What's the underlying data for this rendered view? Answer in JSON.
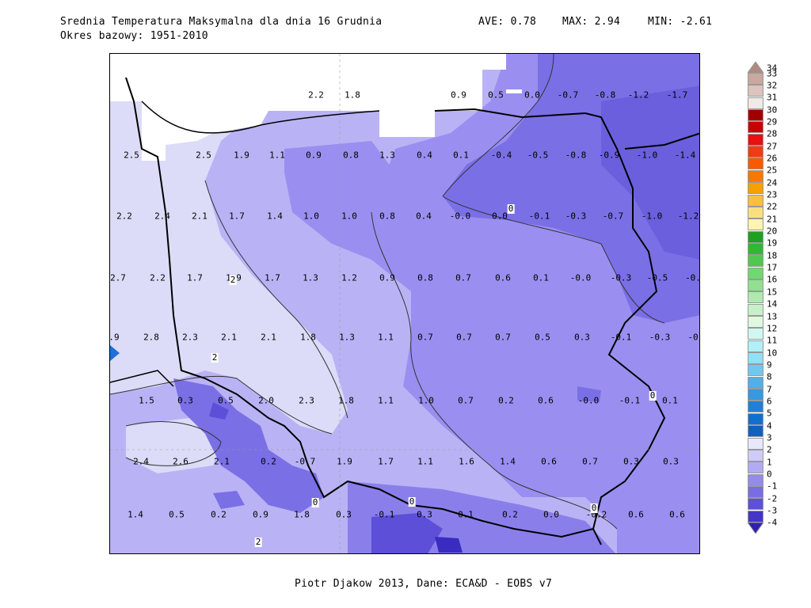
{
  "header": {
    "title": "Srednia Temperatura Maksymalna dla dnia 16 Grudnia",
    "subtitle": "Okres bazowy: 1951-2010",
    "ave": "AVE: 0.78",
    "max": "MAX: 2.94",
    "min": "MIN: -2.61"
  },
  "footer": {
    "credit": "Piotr Djakow 2013, Dane: ECA&D - EOBS v7"
  },
  "colors": {
    "land_bg": "#9a8ff0",
    "band_2_3": "#dcdcf8",
    "band_1_2": "#b9b3f5",
    "band_0_1": "#9a8ff0",
    "band_m1_0": "#7b6fe6",
    "band_m2_m1": "#5d4fd8",
    "sea": "#ffffff"
  },
  "legend": {
    "items": [
      {
        "label": "34",
        "color": "#b08a80"
      },
      {
        "label": "33",
        "color": "#c9a89f"
      },
      {
        "label": "32",
        "color": "#dcc3bc"
      },
      {
        "label": "31",
        "color": "#f2e8e4"
      },
      {
        "label": "30",
        "color": "#a00000"
      },
      {
        "label": "29",
        "color": "#c80000"
      },
      {
        "label": "28",
        "color": "#e81010"
      },
      {
        "label": "27",
        "color": "#f03c10"
      },
      {
        "label": "26",
        "color": "#f85a00"
      },
      {
        "label": "25",
        "color": "#f87800"
      },
      {
        "label": "24",
        "color": "#f8a000"
      },
      {
        "label": "23",
        "color": "#f8c040"
      },
      {
        "label": "22",
        "color": "#f8e080"
      },
      {
        "label": "21",
        "color": "#fff5b0"
      },
      {
        "label": "20",
        "color": "#20a020"
      },
      {
        "label": "19",
        "color": "#30b830"
      },
      {
        "label": "18",
        "color": "#50c850"
      },
      {
        "label": "17",
        "color": "#70d870"
      },
      {
        "label": "16",
        "color": "#90e090"
      },
      {
        "label": "15",
        "color": "#b0e8b0"
      },
      {
        "label": "14",
        "color": "#c8f0c8"
      },
      {
        "label": "13",
        "color": "#e0f8e0"
      },
      {
        "label": "12",
        "color": "#d0f8f0"
      },
      {
        "label": "11",
        "color": "#b0f0f8"
      },
      {
        "label": "10",
        "color": "#90e0f8"
      },
      {
        "label": "9",
        "color": "#70c8f0"
      },
      {
        "label": "8",
        "color": "#50b0e8"
      },
      {
        "label": "7",
        "color": "#3898e0"
      },
      {
        "label": "6",
        "color": "#2080d8"
      },
      {
        "label": "5",
        "color": "#1070d0"
      },
      {
        "label": "4",
        "color": "#1060c0"
      },
      {
        "label": "3",
        "color": "#e8e8fc"
      },
      {
        "label": "2",
        "color": "#cfcbf8"
      },
      {
        "label": "1",
        "color": "#b2abf3"
      },
      {
        "label": "0",
        "color": "#958aee"
      },
      {
        "label": "-1",
        "color": "#7a6de4"
      },
      {
        "label": "-2",
        "color": "#5e50d8"
      },
      {
        "label": "-3",
        "color": "#4434c8"
      },
      {
        "label": "-4",
        "color": "#3020b0"
      }
    ]
  },
  "grid_values": [
    [
      "2.2",
      "1.8",
      "0.9",
      "0.5",
      "0.0",
      "-0.7",
      "-0.8",
      "-1.2",
      "-1.7"
    ],
    [
      "2.5",
      "2.5",
      "1.9",
      "1.1",
      "0.9",
      "0.8",
      "1.3",
      "0.4",
      "0.1",
      "-0.4",
      "-0.5",
      "-0.8",
      "-0.9",
      "-1.0",
      "-1.4"
    ],
    [
      "2.2",
      "2.4",
      "2.1",
      "1.7",
      "1.4",
      "1.0",
      "1.0",
      "0.8",
      "0.4",
      "-0.0",
      "0.0",
      "-0.1",
      "-0.3",
      "-0.7",
      "-1.0",
      "-1.2"
    ],
    [
      "2.7",
      "2.2",
      "1.7",
      "1.9",
      "1.7",
      "1.3",
      "1.2",
      "0.9",
      "0.8",
      "0.7",
      "0.6",
      "0.1",
      "-0.0",
      "-0.3",
      "-0.5",
      "-0."
    ],
    [
      ".9",
      "2.8",
      "2.3",
      "2.1",
      "2.1",
      "1.8",
      "1.3",
      "1.1",
      "0.7",
      "0.7",
      "0.7",
      "0.5",
      "0.3",
      "-0.1",
      "-0.3",
      "-0"
    ],
    [
      "1.5",
      "0.3",
      "0.5",
      "2.0",
      "2.3",
      "1.8",
      "1.1",
      "1.0",
      "0.7",
      "0.2",
      "0.6",
      "-0.0",
      "-0.1",
      "0.1"
    ],
    [
      "2.4",
      "2.6",
      "2.1",
      "0.2",
      "-0.7",
      "1.9",
      "1.7",
      "1.1",
      "1.6",
      "1.4",
      "0.6",
      "0.7",
      "0.3",
      "0.3"
    ],
    [
      "1.4",
      "0.5",
      "0.2",
      "0.9",
      "1.8",
      "0.3",
      "-0.1",
      "0.3",
      "0.1",
      "0.2",
      "0.0",
      "-0.2",
      "0.6",
      "0.6"
    ]
  ],
  "contour_labels": [
    "0",
    "2",
    "2",
    "0",
    "0",
    "0",
    "0",
    "2"
  ]
}
